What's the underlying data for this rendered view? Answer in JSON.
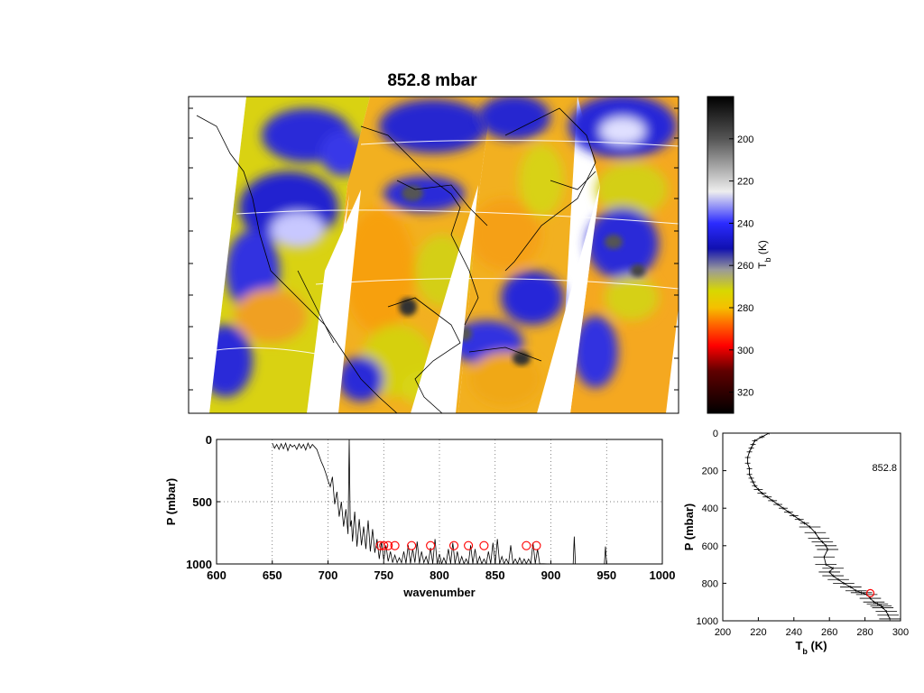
{
  "figure": {
    "title": "852.8 mbar",
    "colors": {
      "background": "#ffffff",
      "axis": "#000000",
      "marker": "#ff0000",
      "grid": "#555555"
    }
  },
  "chart_data": [
    {
      "type": "heatmap",
      "title": "852.8 mbar",
      "description_value_label": "",
      "colorbar": {
        "label_main": "T",
        "label_sub": "b",
        "label_unit": " (K)",
        "range": [
          180,
          330
        ],
        "ticks": [
          200,
          220,
          240,
          260,
          280,
          300,
          320
        ],
        "colormap_stops": [
          {
            "value": 180,
            "color": "#000000"
          },
          {
            "value": 200,
            "color": "#555555"
          },
          {
            "value": 225,
            "color": "#eeeeee"
          },
          {
            "value": 240,
            "color": "#2b2bff"
          },
          {
            "value": 252,
            "color": "#1010b0"
          },
          {
            "value": 262,
            "color": "#9a9a9a"
          },
          {
            "value": 272,
            "color": "#d8d800"
          },
          {
            "value": 280,
            "color": "#f5c000"
          },
          {
            "value": 288,
            "color": "#ff6600"
          },
          {
            "value": 298,
            "color": "#ff0000"
          },
          {
            "value": 310,
            "color": "#600000"
          },
          {
            "value": 330,
            "color": "#000000"
          }
        ]
      },
      "map_colors": {
        "cold_cloud": "#2020e0",
        "cirrus": "#e6e6ff",
        "core": "#3a3a3a",
        "warm_land": "#f5a623",
        "mid": "#d6d610",
        "coast": "#000000",
        "gap": "#ffffff"
      }
    },
    {
      "type": "line",
      "xlabel": "wavenumber",
      "ylabel": "P (mbar)",
      "xlim": [
        600,
        1000
      ],
      "ylim": [
        1000,
        0
      ],
      "xticks": [
        600,
        650,
        700,
        750,
        800,
        850,
        900,
        950,
        1000
      ],
      "yticks": [
        0,
        500,
        1000
      ],
      "grid": true,
      "series": [
        {
          "x": [
            650,
            652,
            654,
            656,
            658,
            660,
            662,
            664,
            666,
            668,
            670,
            672,
            674,
            676,
            678,
            680,
            682,
            684,
            686,
            688,
            690,
            692,
            694,
            696,
            698,
            700,
            702,
            704,
            706,
            708,
            710,
            712,
            714,
            716,
            718,
            719,
            720,
            721,
            722,
            724,
            726,
            728,
            730,
            732,
            734,
            736,
            738,
            740,
            742,
            744,
            746,
            748,
            750,
            752,
            754,
            756,
            758,
            760,
            762,
            764,
            766,
            768,
            770,
            772,
            774,
            776,
            778,
            780,
            782,
            784,
            786,
            788,
            790,
            792,
            794,
            796,
            798,
            800,
            802,
            804,
            806,
            808,
            810,
            812,
            814,
            816,
            818,
            820,
            822,
            824,
            826,
            828,
            830,
            832,
            834,
            836,
            838,
            840,
            842,
            844,
            846,
            848,
            850,
            852,
            854,
            856,
            858,
            860,
            862,
            864,
            866,
            868,
            870,
            872,
            874,
            876,
            878,
            880,
            882,
            884,
            886,
            888,
            890,
            900,
            910,
            920,
            921,
            922,
            930,
            940,
            948,
            949,
            950,
            960,
            1000
          ],
          "y": [
            30,
            70,
            40,
            80,
            35,
            75,
            30,
            90,
            40,
            60,
            45,
            80,
            35,
            70,
            40,
            85,
            30,
            70,
            40,
            60,
            80,
            130,
            180,
            220,
            270,
            330,
            380,
            300,
            520,
            420,
            620,
            500,
            700,
            560,
            760,
            0,
            700,
            650,
            820,
            580,
            860,
            640,
            850,
            700,
            880,
            650,
            900,
            720,
            910,
            800,
            960,
            820,
            970,
            850,
            980,
            900,
            990,
            930,
            990,
            950,
            990,
            900,
            995,
            850,
            995,
            880,
            990,
            820,
            995,
            900,
            990,
            940,
            998,
            870,
            998,
            800,
            998,
            920,
            998,
            950,
            998,
            880,
            998,
            830,
            998,
            900,
            998,
            940,
            998,
            960,
            998,
            850,
            998,
            880,
            998,
            940,
            998,
            960,
            998,
            900,
            998,
            830,
            998,
            800,
            998,
            940,
            998,
            960,
            998,
            850,
            998,
            960,
            998,
            950,
            998,
            960,
            998,
            960,
            998,
            830,
            998,
            880,
            998,
            1000,
            1000,
            1000,
            780,
            1000,
            1000,
            1000,
            1000,
            860,
            1000,
            1000,
            1000
          ]
        }
      ],
      "markers": {
        "x": [
          747,
          750,
          754,
          760,
          775,
          792,
          813,
          826,
          840,
          878,
          887
        ],
        "y": [
          852.8,
          852.8,
          852.8,
          852.8,
          852.8,
          852.8,
          852.8,
          852.8,
          852.8,
          852.8,
          852.8
        ]
      }
    },
    {
      "type": "line",
      "xlabel_main": "T",
      "xlabel_sub": "b",
      "xlabel_unit": " (K)",
      "ylabel": "P (mbar)",
      "xlim": [
        200,
        300
      ],
      "ylim": [
        1000,
        0
      ],
      "xticks": [
        200,
        220,
        240,
        260,
        280,
        300
      ],
      "yticks": [
        0,
        200,
        400,
        600,
        800,
        1000
      ],
      "annotation": "852.8",
      "series": [
        {
          "x": [
            226,
            222,
            218,
            217,
            216,
            215,
            214,
            214,
            215,
            215,
            216,
            217,
            218,
            220,
            222,
            225,
            228,
            231,
            234,
            237,
            240,
            243,
            246,
            249,
            252,
            254,
            256,
            258,
            259,
            257,
            258,
            262,
            260,
            262,
            265,
            268,
            272,
            275,
            278,
            281,
            283,
            285,
            287,
            289,
            290,
            292,
            293,
            294
          ],
          "y": [
            0,
            20,
            40,
            60,
            80,
            100,
            130,
            160,
            190,
            220,
            240,
            260,
            280,
            300,
            320,
            340,
            360,
            380,
            400,
            420,
            440,
            460,
            480,
            500,
            530,
            560,
            580,
            600,
            620,
            660,
            700,
            720,
            740,
            760,
            780,
            800,
            820,
            840,
            850,
            860,
            880,
            900,
            910,
            920,
            930,
            950,
            970,
            990
          ]
        }
      ],
      "marker": {
        "x": 283,
        "y": 852.8
      }
    }
  ]
}
